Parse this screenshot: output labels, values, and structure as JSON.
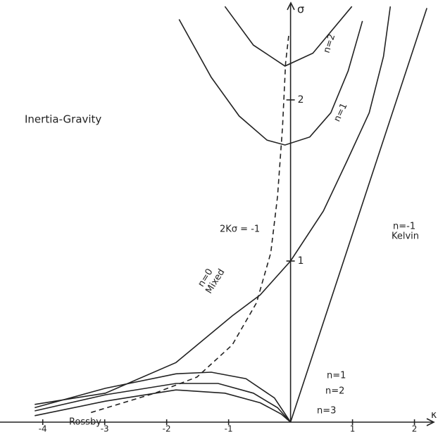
{
  "chart_data": {
    "type": "line",
    "xlim": [
      -4.69,
      2.38
    ],
    "ylim": [
      0,
      2.62
    ],
    "xticks": [
      -4,
      -3,
      -2,
      -1,
      1,
      2
    ],
    "yticks": [
      1,
      2
    ],
    "x_label": "κ",
    "y_label": "σ",
    "color": "#222222",
    "annotations": [
      "Inertia-Gravity",
      "2Kσ = -1",
      "n=-1",
      "Kelvin",
      "n=0",
      "Mixed",
      "n=1",
      "n=2",
      "n=3",
      "Rossby",
      "n=2",
      "n=1"
    ],
    "series": [
      {
        "x": [
          0,
          2.2
        ],
        "values": [
          0,
          2.57
        ]
      },
      {
        "x": [
          -4.13,
          -2.99,
          -1.85,
          -0.94,
          -0.49,
          0,
          0.53,
          0.91,
          1.27,
          1.5,
          1.61
        ],
        "values": [
          0.11,
          0.18,
          0.37,
          0.66,
          0.79,
          1.0,
          1.31,
          1.62,
          1.92,
          2.27,
          2.58
        ]
      },
      {
        "x": [
          -1.8,
          -1.28,
          -0.83,
          -0.38,
          -0.09,
          0.31,
          0.65,
          0.93,
          1.16
        ],
        "values": [
          2.5,
          2.14,
          1.9,
          1.75,
          1.72,
          1.77,
          1.92,
          2.18,
          2.49
        ]
      },
      {
        "x": [
          -1.06,
          -0.6,
          -0.09,
          0.36,
          0.99
        ],
        "values": [
          2.58,
          2.34,
          2.21,
          2.29,
          2.58
        ]
      },
      {
        "x": [
          -4.13,
          -2.99,
          -1.85,
          -1.28,
          -0.72,
          -0.26,
          0
        ],
        "values": [
          0.09,
          0.21,
          0.3,
          0.31,
          0.27,
          0.15,
          0
        ]
      },
      {
        "x": [
          -4.13,
          -2.99,
          -1.85,
          -1.17,
          -0.6,
          -0.21,
          0
        ],
        "values": [
          0.07,
          0.17,
          0.24,
          0.24,
          0.18,
          0.09,
          0
        ]
      },
      {
        "x": [
          -4.13,
          -2.99,
          -1.85,
          -1.06,
          -0.49,
          -0.15,
          0
        ],
        "values": [
          0.04,
          0.13,
          0.2,
          0.18,
          0.12,
          0.05,
          0
        ]
      },
      {
        "x": [
          -3.22,
          -2.19,
          -1.51,
          -0.94,
          -0.55,
          -0.32,
          -0.21,
          -0.13,
          -0.08,
          -0.03
        ],
        "values": [
          0.06,
          0.18,
          0.28,
          0.48,
          0.74,
          1.05,
          1.4,
          1.83,
          2.23,
          2.4
        ],
        "dashed": true
      }
    ]
  }
}
